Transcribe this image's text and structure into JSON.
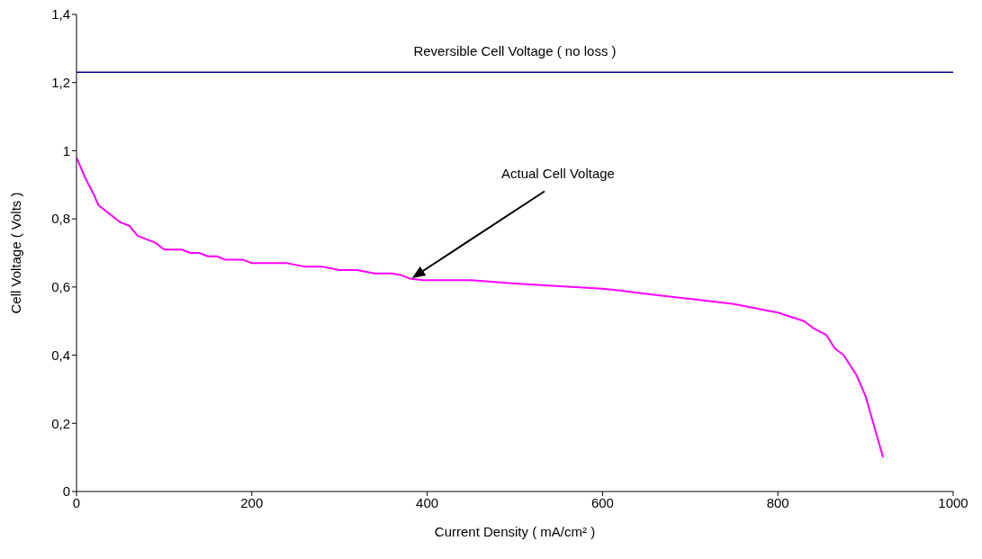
{
  "chart_data": {
    "type": "line",
    "xlabel": "Current Density ( mA/cm² )",
    "ylabel": "Cell Voltage ( Volts )",
    "xlim": [
      0,
      1000
    ],
    "xticks": [
      0,
      200,
      400,
      600,
      800,
      1000
    ],
    "ylim": [
      0,
      1.4
    ],
    "yticks": [
      {
        "value": 0,
        "label": "0"
      },
      {
        "value": 0.2,
        "label": "0,2"
      },
      {
        "value": 0.4,
        "label": "0,4"
      },
      {
        "value": 0.6,
        "label": "0,6"
      },
      {
        "value": 0.8,
        "label": "0,8"
      },
      {
        "value": 1,
        "label": "1"
      },
      {
        "value": 1.2,
        "label": "1,2"
      },
      {
        "value": 1.4,
        "label": "1,4"
      }
    ],
    "grid": false,
    "legend": false,
    "marker": "none",
    "line_style": "solid",
    "series": [
      {
        "color": "#ff00ff",
        "x": [
          0,
          10,
          20,
          25,
          40,
          50,
          60,
          70,
          80,
          90,
          100,
          120,
          130,
          140,
          150,
          160,
          170,
          190,
          200,
          240,
          260,
          280,
          300,
          320,
          340,
          360,
          370,
          380,
          395,
          450,
          500,
          600,
          620,
          650,
          700,
          750,
          780,
          800,
          830,
          840,
          855,
          865,
          875,
          890,
          900,
          910,
          920
        ],
        "values": [
          0.98,
          0.92,
          0.87,
          0.84,
          0.81,
          0.79,
          0.78,
          0.75,
          0.74,
          0.73,
          0.71,
          0.71,
          0.7,
          0.7,
          0.69,
          0.69,
          0.68,
          0.68,
          0.67,
          0.67,
          0.66,
          0.66,
          0.65,
          0.65,
          0.64,
          0.64,
          0.635,
          0.625,
          0.62,
          0.62,
          0.61,
          0.595,
          0.59,
          0.58,
          0.565,
          0.55,
          0.535,
          0.525,
          0.5,
          0.48,
          0.46,
          0.42,
          0.4,
          0.34,
          0.28,
          0.19,
          0.1
        ]
      }
    ],
    "ref_lines": [
      {
        "axis": "y",
        "value": 1.23,
        "label": "Reversible Cell Voltage ( no loss )",
        "color": "#000080",
        "line_style": "solid"
      }
    ],
    "annotations": [
      "Actual Cell Voltage"
    ]
  }
}
